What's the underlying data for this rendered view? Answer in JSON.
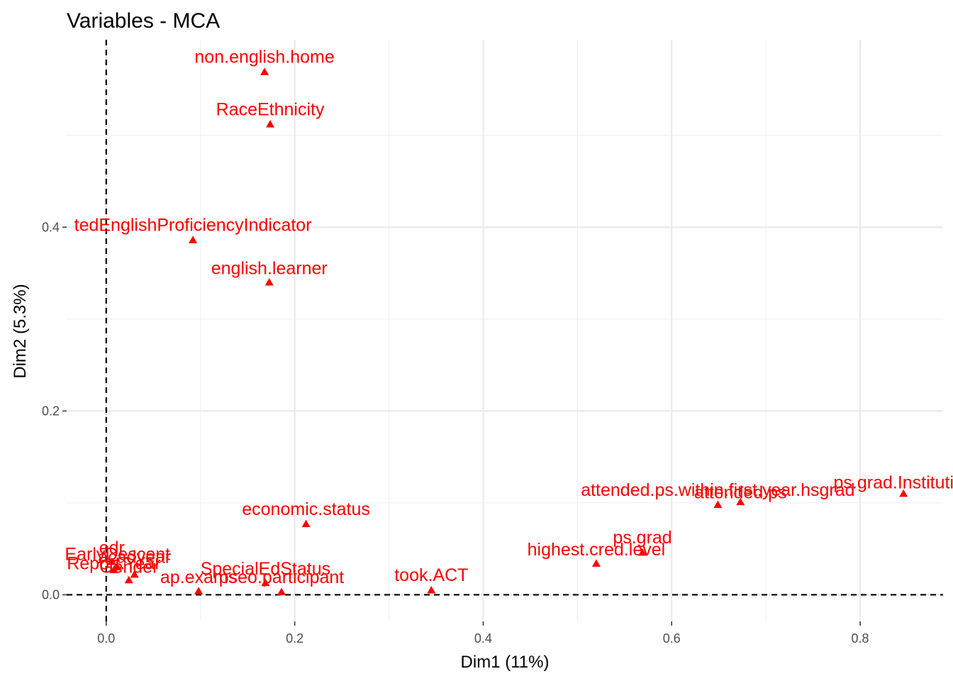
{
  "chart_data": {
    "type": "scatter",
    "title": "Variables - MCA",
    "xlabel": "Dim1 (11%)",
    "ylabel": "Dim2 (5.3%)",
    "xlim": [
      -0.042,
      0.888
    ],
    "ylim": [
      -0.029,
      0.604
    ],
    "x_ticks": [
      0.0,
      0.2,
      0.4,
      0.6,
      0.8
    ],
    "x_tick_labels": [
      "0.0",
      "0.2",
      "0.4",
      "0.6",
      "0.8"
    ],
    "y_ticks": [
      0.0,
      0.2,
      0.4
    ],
    "y_tick_labels": [
      "0.0",
      "0.2",
      "0.4"
    ],
    "grid": true,
    "reference_lines": {
      "x": 0,
      "y": 0,
      "style": "dashed"
    },
    "marker": "triangle",
    "color": "#FF0000",
    "points": [
      {
        "label": "non.english.home",
        "x": 0.168,
        "y": 0.569,
        "lx": 0.168,
        "ly": 0.585
      },
      {
        "label": "RaceEthnicity",
        "x": 0.174,
        "y": 0.512,
        "lx": 0.174,
        "ly": 0.528
      },
      {
        "label": "tedEnglishProficiencyIndicator",
        "x": 0.092,
        "y": 0.386,
        "lx": 0.092,
        "ly": 0.402
      },
      {
        "label": "english.learner",
        "x": 0.173,
        "y": 0.34,
        "lx": 0.173,
        "ly": 0.355
      },
      {
        "label": "economic.status",
        "x": 0.212,
        "y": 0.077,
        "lx": 0.212,
        "ly": 0.093
      },
      {
        "label": "took.ACT",
        "x": 0.345,
        "y": 0.005,
        "lx": 0.345,
        "ly": 0.021
      },
      {
        "label": "highest.cred.level",
        "x": 0.52,
        "y": 0.034,
        "lx": 0.52,
        "ly": 0.049
      },
      {
        "label": "ps.grad",
        "x": 0.569,
        "y": 0.046,
        "lx": 0.569,
        "ly": 0.062
      },
      {
        "label": "attended.ps.within.first.year.hsgrad",
        "x": 0.649,
        "y": 0.098,
        "lx": 0.649,
        "ly": 0.114
      },
      {
        "label": "attended.ps",
        "x": 0.673,
        "y": 0.101,
        "lx": 0.673,
        "ly": 0.111
      },
      {
        "label": "ps.grad.Institution",
        "x": 0.846,
        "y": 0.11,
        "lx": 0.846,
        "ly": 0.122
      },
      {
        "label": "SpecialEdStatus",
        "x": 0.169,
        "y": 0.013,
        "lx": 0.169,
        "ly": 0.028
      },
      {
        "label": "ap.exams",
        "x": 0.098,
        "y": 0.004,
        "lx": 0.098,
        "ly": 0.019
      },
      {
        "label": "pseo.participant",
        "x": 0.186,
        "y": 0.003,
        "lx": 0.186,
        "ly": 0.019
      },
      {
        "label": "Gender",
        "x": 0.024,
        "y": 0.016,
        "lx": 0.024,
        "ly": 0.03
      },
      {
        "label": "edr",
        "x": 0.006,
        "y": 0.036,
        "lx": 0.006,
        "ly": 0.051
      },
      {
        "label": "acadyear",
        "x": 0.03,
        "y": 0.022,
        "lx": 0.03,
        "ly": 0.041
      },
      {
        "label": "EarlyDescent",
        "x": 0.012,
        "y": 0.03,
        "lx": 0.012,
        "ly": 0.044
      },
      {
        "label": "Report.Year",
        "x": 0.008,
        "y": 0.027,
        "lx": 0.008,
        "ly": 0.034
      }
    ]
  }
}
